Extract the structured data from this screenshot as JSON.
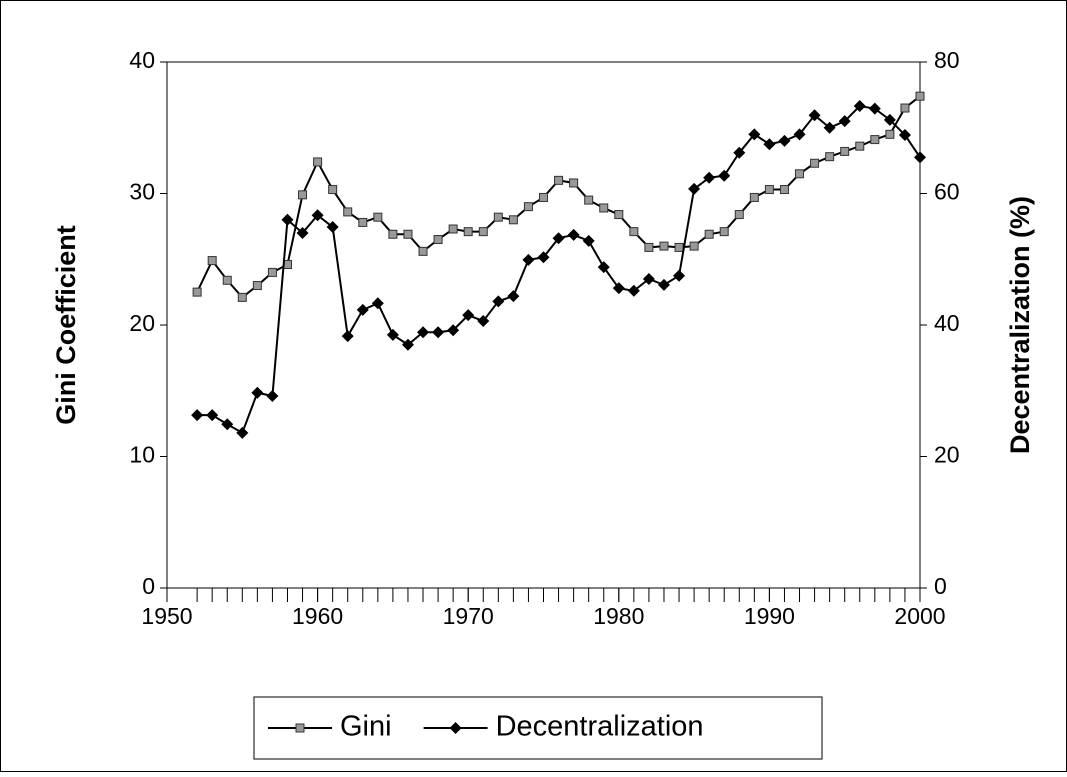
{
  "chart_data": {
    "type": "line",
    "x": [
      1952,
      1953,
      1954,
      1955,
      1956,
      1957,
      1958,
      1959,
      1960,
      1961,
      1962,
      1963,
      1964,
      1965,
      1966,
      1967,
      1968,
      1969,
      1970,
      1971,
      1972,
      1973,
      1974,
      1975,
      1976,
      1977,
      1978,
      1979,
      1980,
      1981,
      1982,
      1983,
      1984,
      1985,
      1986,
      1987,
      1988,
      1989,
      1990,
      1991,
      1992,
      1993,
      1994,
      1995,
      1996,
      1997,
      1998,
      1999,
      2000
    ],
    "series": [
      {
        "name": "Gini",
        "color": "#000000",
        "marker": "square",
        "marker_color": "#999999",
        "values": [
          22.5,
          24.9,
          23.4,
          22.1,
          23.0,
          24.0,
          24.6,
          29.9,
          32.4,
          30.3,
          28.6,
          27.8,
          28.2,
          26.9,
          26.9,
          25.6,
          26.5,
          27.3,
          27.1,
          27.1,
          28.2,
          28.0,
          29.0,
          29.7,
          31.0,
          30.8,
          29.5,
          28.9,
          28.4,
          27.1,
          25.9,
          26.0,
          25.9,
          26.0,
          26.9,
          27.1,
          28.4,
          29.7,
          30.3,
          30.3,
          31.5,
          32.3,
          32.8,
          33.2,
          33.6,
          34.1,
          34.5,
          36.5,
          37.4
        ]
      },
      {
        "name": "Decentralization",
        "color": "#000000",
        "marker": "diamond",
        "marker_color": "#000000",
        "axis": "y2",
        "values": [
          26.3,
          26.3,
          24.9,
          23.6,
          29.7,
          29.2,
          56.0,
          54.0,
          56.7,
          54.9,
          38.3,
          42.3,
          43.3,
          38.5,
          37.0,
          38.9,
          38.9,
          39.2,
          41.5,
          40.6,
          43.6,
          44.4,
          49.9,
          50.3,
          53.2,
          53.7,
          52.8,
          48.8,
          45.6,
          45.2,
          47.0,
          46.1,
          47.5,
          60.7,
          62.4,
          62.7,
          66.2,
          69.0,
          67.5,
          68.0,
          69.0,
          71.9,
          70.0,
          71.0,
          73.3,
          72.9,
          71.2,
          68.9,
          65.5
        ]
      }
    ],
    "ylabel": "Gini Coefficient",
    "y2label": "Decentralization (%)",
    "xlim": [
      1950,
      2000
    ],
    "xticks": [
      1950,
      1960,
      1970,
      1980,
      1990,
      2000
    ],
    "ylim": [
      0,
      40
    ],
    "yticks": [
      0,
      10,
      20,
      30,
      40
    ],
    "y2lim": [
      0,
      80
    ],
    "y2ticks": [
      0,
      20,
      40,
      60,
      80
    ],
    "legend": "bottom"
  }
}
